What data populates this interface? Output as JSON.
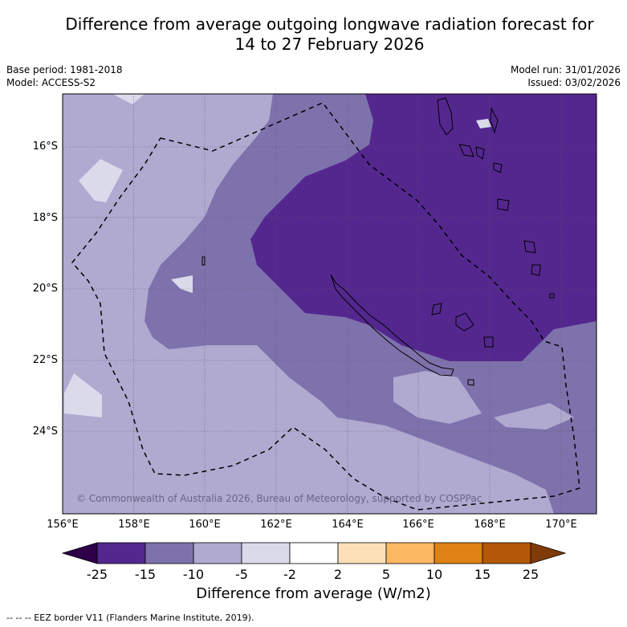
{
  "title_line1": "Difference from average outgoing longwave radiation forecast for",
  "title_line2": "14 to 27 February 2026",
  "meta_left": {
    "base_period": "Base period: 1981-2018",
    "model": "Model: ACCESS-S2"
  },
  "meta_right": {
    "model_run": "Model run: 31/01/2026",
    "issued": "Issued: 03/02/2026"
  },
  "latitude_labels": [
    "16°S",
    "18°S",
    "20°S",
    "22°S",
    "24°S"
  ],
  "longitude_labels": [
    "156°E",
    "158°E",
    "160°E",
    "162°E",
    "164°E",
    "166°E",
    "168°E",
    "170°E"
  ],
  "copyright": "© Commonwealth of Australia 2026, Bureau of Meteorology, supported by COSPPac",
  "colorbar": {
    "ticks": [
      "-25",
      "-15",
      "-10",
      "-5",
      "-2",
      "2",
      "5",
      "10",
      "15",
      "25"
    ],
    "colors": [
      "#54278f",
      "#7e72ac",
      "#b0a9d0",
      "#dadaeb",
      "#ffffff",
      "#fee0b6",
      "#fdb863",
      "#e08214",
      "#b35806"
    ],
    "under_color": "#2d0048",
    "over_color": "#7f3b08",
    "label": "Difference from average (W/m2)"
  },
  "legend_footer": "-- -- -- EEZ border V11 (Flanders Marine Institute, 2019)."
}
